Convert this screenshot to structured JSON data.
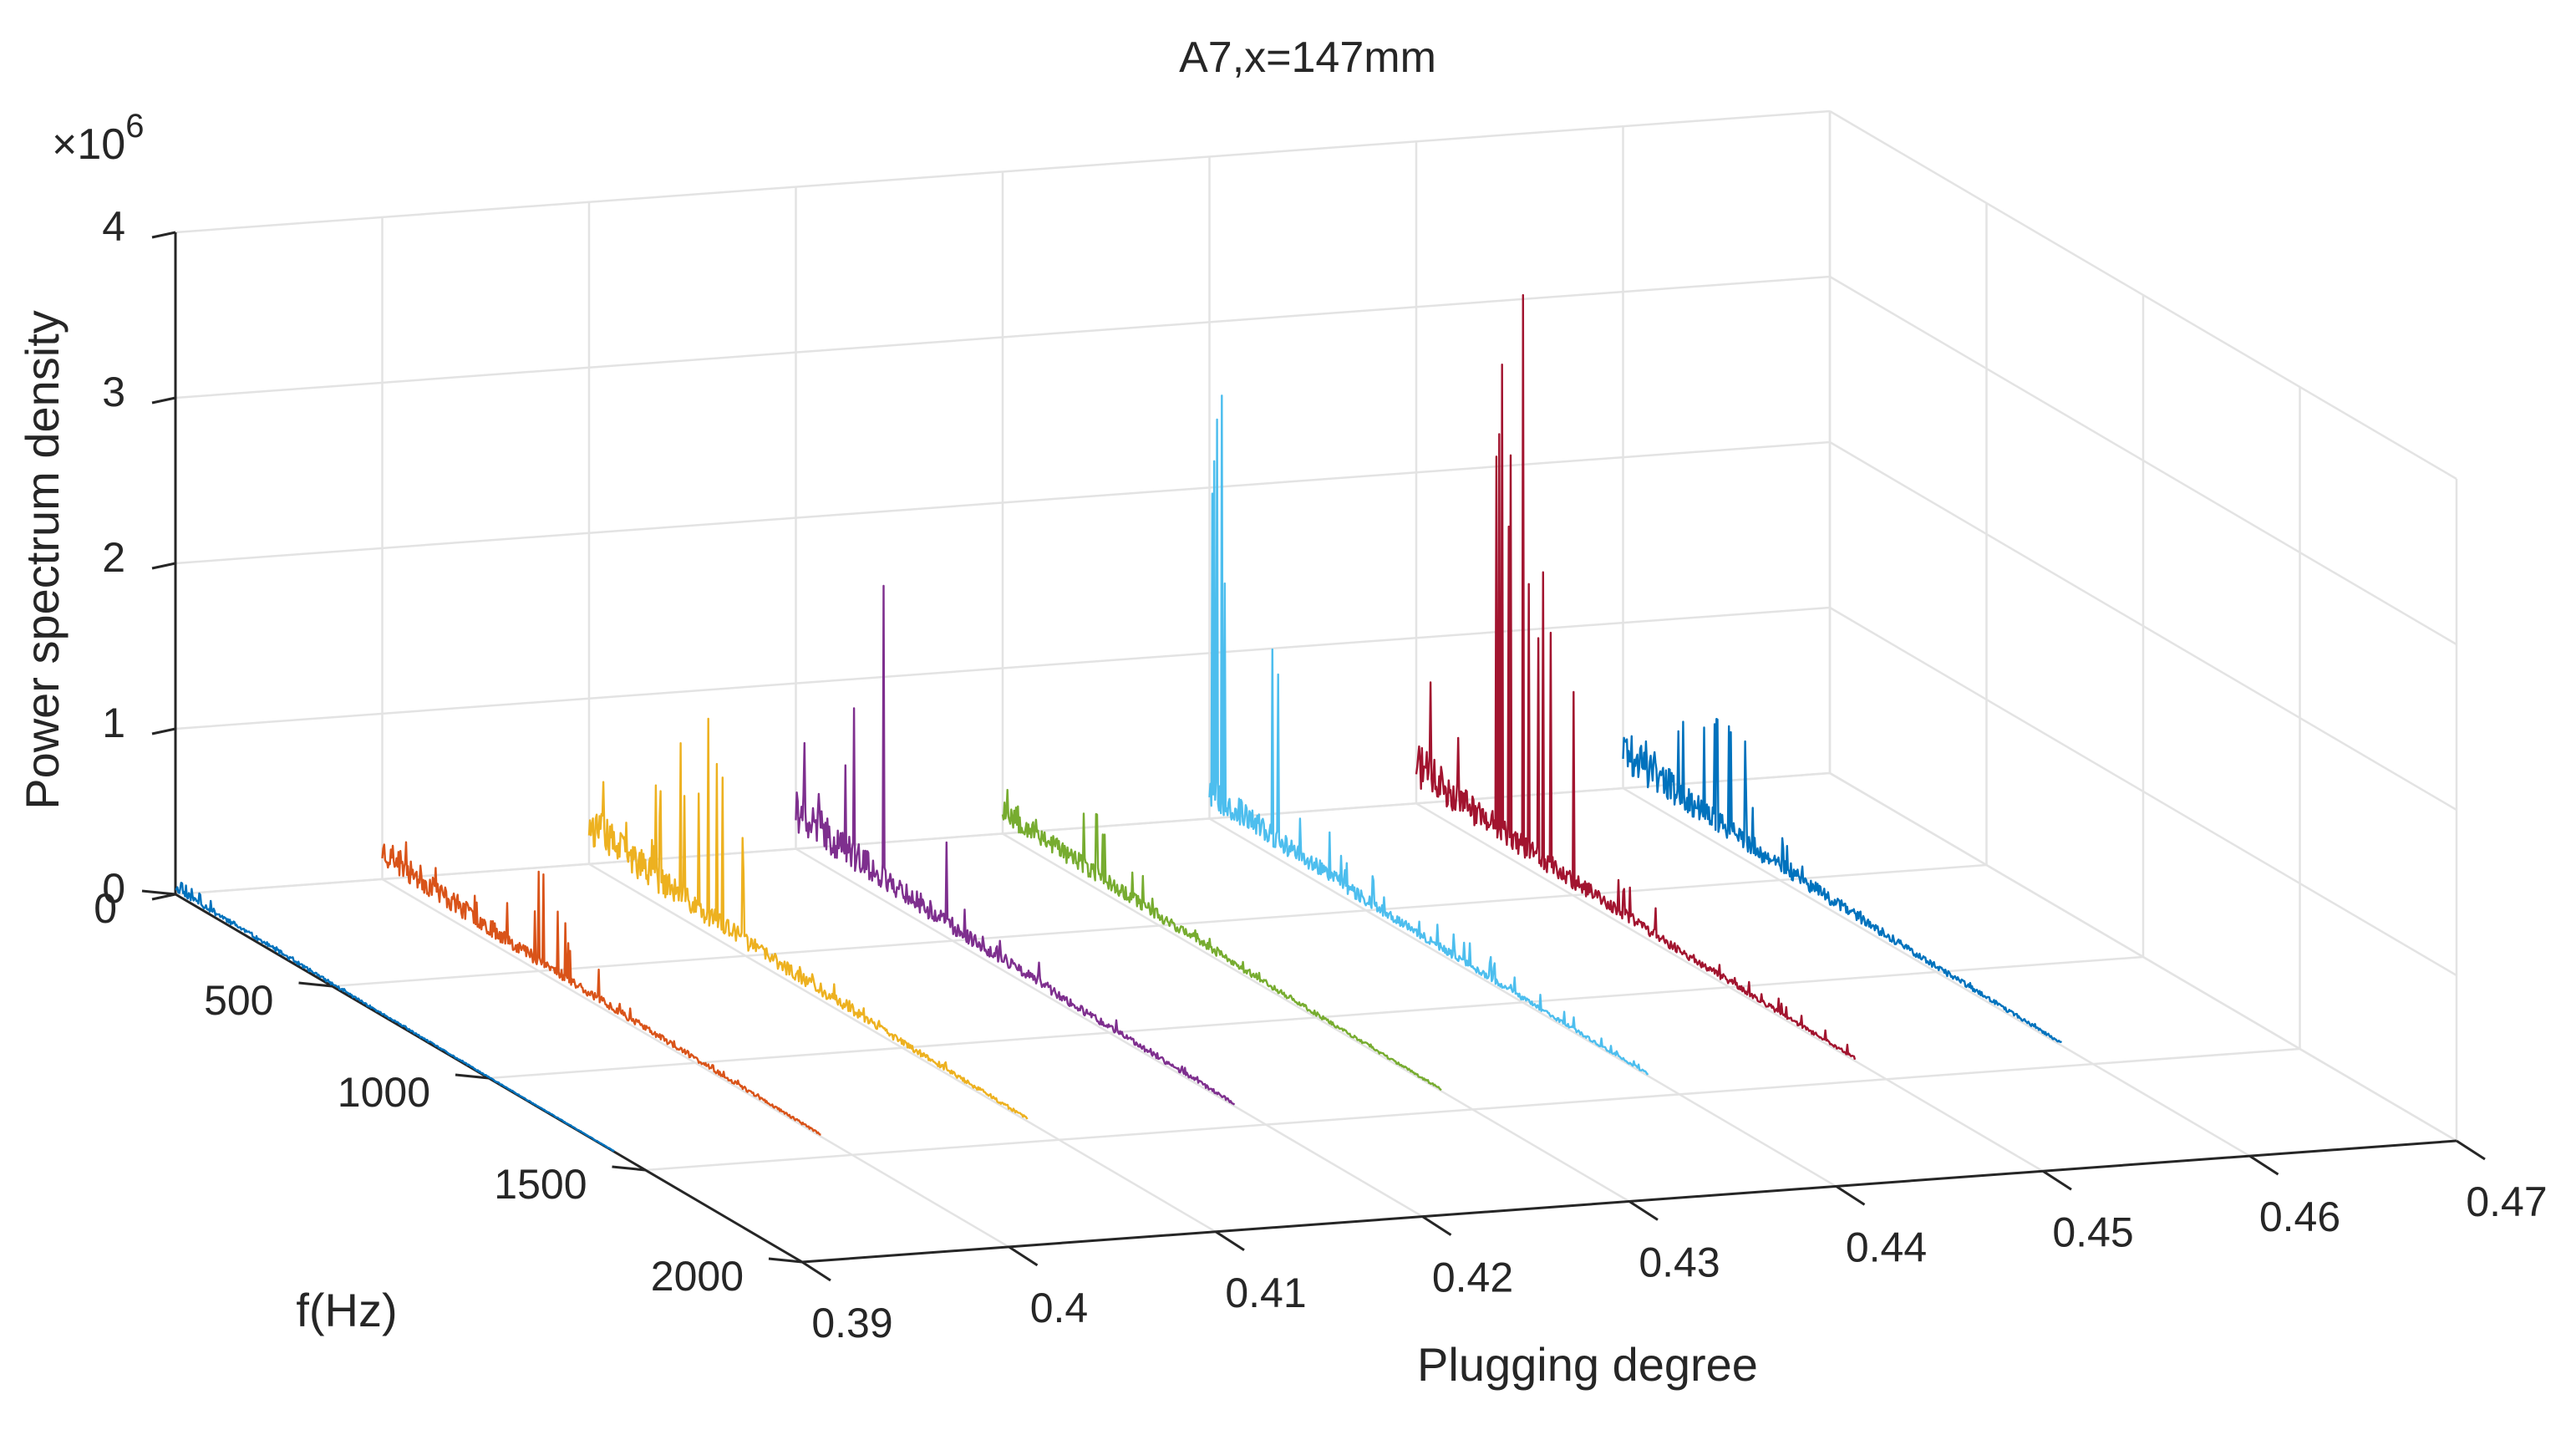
{
  "chart_data": {
    "type": "line",
    "subtype": "3d-waterfall",
    "title": "A7,x=147mm",
    "xlabel": "Plugging degree",
    "ylabel": "f(Hz)",
    "zlabel": "Power spectrum density",
    "z_exponent_label": "×10",
    "z_exponent": "6",
    "xlim": [
      0.39,
      0.47
    ],
    "ylim": [
      0,
      2000
    ],
    "zlim": [
      0,
      4
    ],
    "x_ticks": [
      0.39,
      0.4,
      0.41,
      0.42,
      0.43,
      0.44,
      0.45,
      0.46,
      0.47
    ],
    "x_tick_labels": [
      "0.39",
      "0.4",
      "0.41",
      "0.42",
      "0.43",
      "0.44",
      "0.45",
      "0.46",
      "0.47"
    ],
    "y_ticks": [
      0,
      500,
      1000,
      1500,
      2000
    ],
    "y_tick_labels": [
      "0",
      "500",
      "1000",
      "1500",
      "2000"
    ],
    "z_ticks": [
      0,
      1,
      2,
      3,
      4
    ],
    "z_tick_labels": [
      "0",
      "1",
      "2",
      "3",
      "4"
    ],
    "grid": true,
    "colors": {
      "axis": "#262626",
      "grid": "#e3e3e3"
    },
    "series": [
      {
        "name": "0.39",
        "plugging_degree": 0.39,
        "color": "#0072BD",
        "peak_psd_e6": 0.09,
        "base_psd_e6": 0.05,
        "peak_freq_hz": 20,
        "seed": 11
      },
      {
        "name": "0.4",
        "plugging_degree": 0.4,
        "color": "#D95319",
        "peak_psd_e6": 0.6,
        "base_psd_e6": 0.22,
        "peak_freq_hz": 500,
        "seed": 23
      },
      {
        "name": "0.41",
        "plugging_degree": 0.41,
        "color": "#EDB120",
        "peak_psd_e6": 1.3,
        "base_psd_e6": 0.3,
        "peak_freq_hz": 380,
        "seed": 37
      },
      {
        "name": "0.42",
        "plugging_degree": 0.42,
        "color": "#7E2F8E",
        "peak_psd_e6": 1.9,
        "base_psd_e6": 0.3,
        "peak_freq_hz": 280,
        "seed": 41
      },
      {
        "name": "0.43",
        "plugging_degree": 0.43,
        "color": "#77AC30",
        "peak_psd_e6": 0.45,
        "base_psd_e6": 0.2,
        "peak_freq_hz": 300,
        "seed": 53
      },
      {
        "name": "0.44",
        "plugging_degree": 0.44,
        "color": "#4DBEEE",
        "peak_psd_e6": 2.6,
        "base_psd_e6": 0.22,
        "peak_freq_hz": 40,
        "seed": 67
      },
      {
        "name": "0.45",
        "plugging_degree": 0.45,
        "color": "#A2142F",
        "peak_psd_e6": 3.45,
        "base_psd_e6": 0.3,
        "peak_freq_hz": 340,
        "seed": 71
      },
      {
        "name": "0.46",
        "plugging_degree": 0.46,
        "color": "#0072BD",
        "peak_psd_e6": 0.75,
        "base_psd_e6": 0.3,
        "peak_freq_hz": 300,
        "seed": 89
      }
    ]
  }
}
